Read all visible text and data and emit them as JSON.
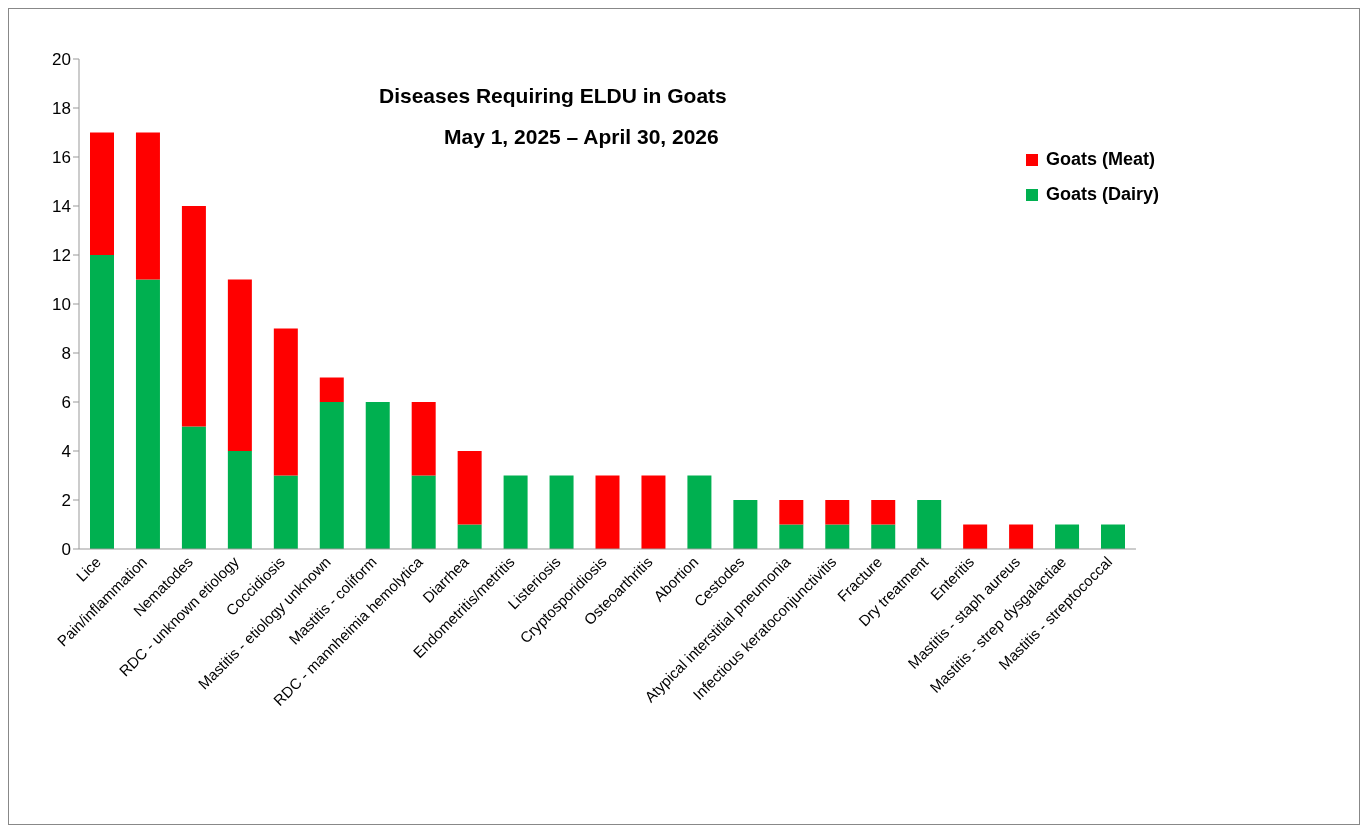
{
  "chart_data": {
    "type": "bar",
    "title": "Diseases Requiring ELDU in Goats",
    "subtitle": "May 1, 2025 – April 30, 2026",
    "categories": [
      "Lice",
      "Pain/inflammation",
      "Nematodes",
      "RDC - unknown etiology",
      "Coccidiosis",
      "Mastitis - etiology unknown",
      "Mastitis - coliform",
      "RDC - mannheimia hemolytica",
      "Diarrhea",
      "Endometritis/metritis",
      "Listeriosis",
      "Cryptosporidiosis",
      "Osteoarthritis",
      "Abortion",
      "Cestodes",
      "Atypical interstitial pneumonia",
      "Infectious keratoconjunctivitis",
      "Fracture",
      "Dry treatment",
      "Enteritis",
      "Mastitis - staph aureus",
      "Mastitis - strep dysgalactiae",
      "Mastitis - streptococcal"
    ],
    "series": [
      {
        "name": "Goats (Dairy)",
        "color": "#00b050",
        "values": [
          12,
          11,
          5,
          4,
          3,
          6,
          6,
          3,
          1,
          3,
          3,
          0,
          0,
          3,
          2,
          1,
          1,
          1,
          2,
          0,
          0,
          1,
          1
        ]
      },
      {
        "name": "Goats (Meat)",
        "color": "#ff0000",
        "values": [
          5,
          6,
          9,
          7,
          6,
          1,
          0,
          3,
          3,
          0,
          0,
          3,
          3,
          0,
          0,
          1,
          1,
          1,
          0,
          1,
          1,
          0,
          0
        ]
      }
    ],
    "stacked": true,
    "ylim": [
      0,
      20
    ],
    "yticks": [
      0,
      2,
      4,
      6,
      8,
      10,
      12,
      14,
      16,
      18,
      20
    ],
    "legend": "top right"
  }
}
